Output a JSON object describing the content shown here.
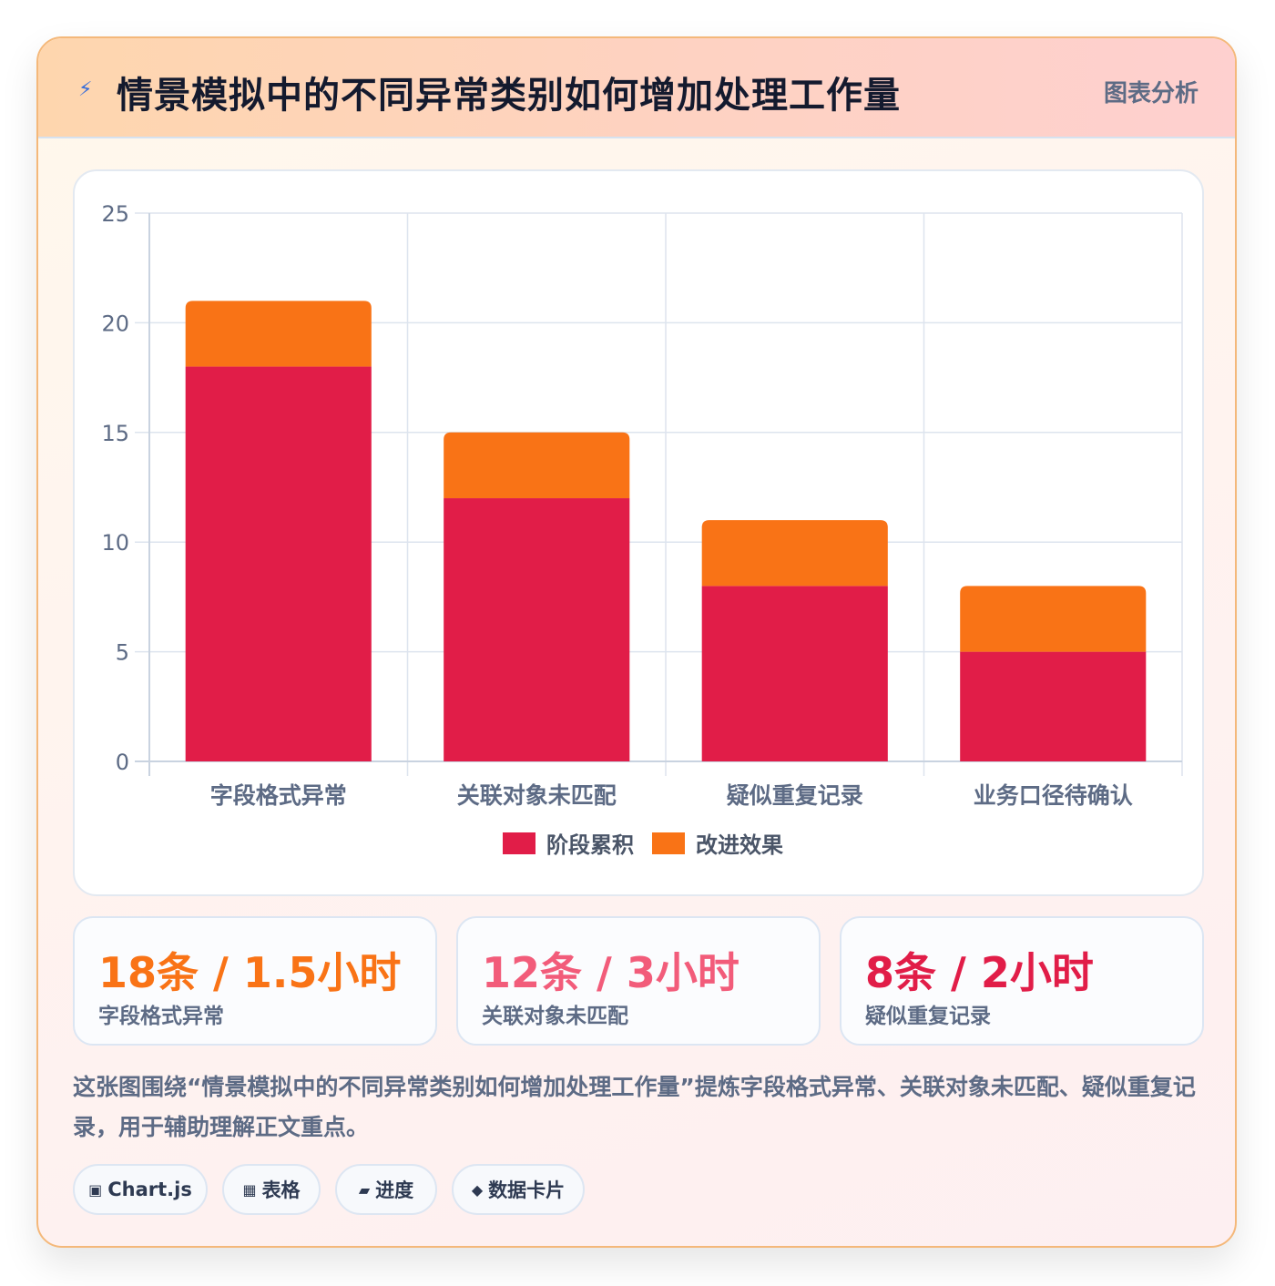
{
  "header": {
    "icon": "lightning-icon",
    "title": "情景模拟中的不同异常类别如何增加处理工作量",
    "tag": "图表分析"
  },
  "chart_data": {
    "type": "bar",
    "stacked": true,
    "categories": [
      "字段格式异常",
      "关联对象未匹配",
      "疑似重复记录",
      "业务口径待确认"
    ],
    "series": [
      {
        "name": "阶段累积",
        "color": "#e11d48",
        "values": [
          18,
          12,
          8,
          5
        ]
      },
      {
        "name": "改进效果",
        "color": "#f97316",
        "values": [
          3,
          3,
          3,
          3
        ]
      }
    ],
    "ylim": [
      0,
      25
    ],
    "yticks": [
      0,
      5,
      10,
      15,
      20,
      25
    ],
    "grid": true,
    "legend": "bottom"
  },
  "stats": [
    {
      "value": "18条 / 1.5小时",
      "label": "字段格式异常",
      "color": "#f97316"
    },
    {
      "value": "12条 / 3小时",
      "label": "关联对象未匹配",
      "color": "#f25c7a"
    },
    {
      "value": "8条 / 2小时",
      "label": "疑似重复记录",
      "color": "#e11d48"
    }
  ],
  "description": "这张图围绕“情景模拟中的不同异常类别如何增加处理工作量”提炼字段格式异常、关联对象未匹配、疑似重复记录，用于辅助理解正文重点。",
  "pills": [
    {
      "icon": "▣",
      "icon_name": "chart-icon",
      "label": "Chart.js"
    },
    {
      "icon": "▦",
      "icon_name": "table-icon",
      "label": "表格"
    },
    {
      "icon": "▰",
      "icon_name": "progress-icon",
      "label": "进度"
    },
    {
      "icon": "◆",
      "icon_name": "data-card-icon",
      "label": "数据卡片"
    }
  ]
}
